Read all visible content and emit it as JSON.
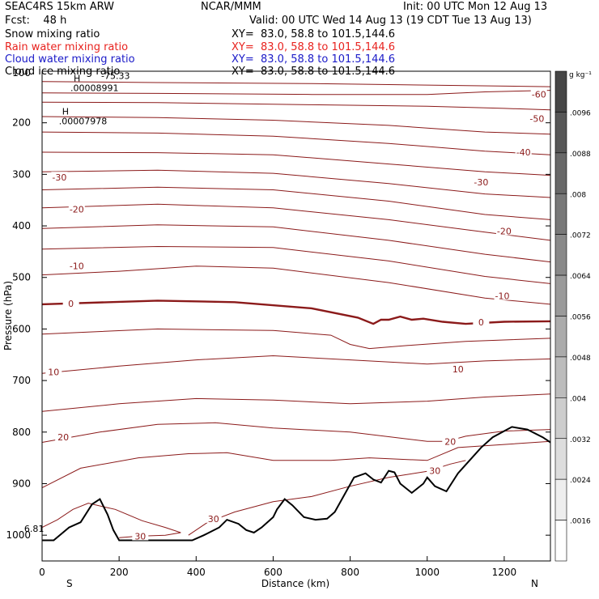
{
  "header": {
    "left_line1": "SEAC4RS 15km ARW",
    "center_line1": "NCAR/MMM",
    "right_line1": "Init: 00 UTC Mon 12 Aug 13",
    "left_line2": "Fcst:    48 h",
    "right_line2": "Valid: 00 UTC Wed 14 Aug 13 (19 CDT Tue 13 Aug 13)"
  },
  "fields": [
    {
      "label": "Snow mixing ratio",
      "xy": "XY=  83.0, 58.8 to 101.5,144.6",
      "color": "#000000"
    },
    {
      "label": "Rain water mixing ratio",
      "xy": "XY=  83.0, 58.8 to 101.5,144.6",
      "color": "#e8221e"
    },
    {
      "label": "Cloud water mixing ratio",
      "xy": "XY=  83.0, 58.8 to 101.5,144.6",
      "color": "#1a1ac8"
    },
    {
      "label": "Cloud ice mixing ratio",
      "xy": "XY=  83.0, 58.8 to 101.5,144.6",
      "color": "#000000"
    }
  ],
  "colors": {
    "isotherm": "#8b1a1a",
    "terrain": "#000000",
    "axis": "#000000"
  },
  "chart_data": {
    "type": "contour",
    "ylabel": "Pressure (hPa)",
    "xlabel": "Distance (km)",
    "xlim": [
      0,
      1320
    ],
    "ylim": [
      1050,
      100
    ],
    "x_ticks": [
      0,
      200,
      400,
      600,
      800,
      1000,
      1200
    ],
    "y_ticks": [
      200,
      300,
      400,
      500,
      600,
      700,
      800,
      900,
      1000
    ],
    "y_top_tick_label": "100",
    "x_end_labels": {
      "left": "S",
      "right": "N"
    },
    "colorbar": {
      "unit": "g kg⁻¹",
      "labels": [
        ".0096",
        ".0088",
        ".008",
        ".0072",
        ".0064",
        ".0056",
        ".0048",
        ".004",
        ".0032",
        ".0024",
        ".0016"
      ]
    },
    "annotations": [
      {
        "marker": "H",
        "value": ".00008991",
        "x": 145,
        "p": 135
      },
      {
        "marker": "H",
        "value": ".00007978",
        "x": 115,
        "p": 200
      },
      {
        "marker": "",
        "value": "-75.33",
        "x": 225,
        "p": 112
      },
      {
        "marker": "",
        "value": "6.81",
        "x": 25,
        "p": 990
      }
    ],
    "isotherm_labels": [
      {
        "text": "-60",
        "x": 1290,
        "p": 145
      },
      {
        "text": "-50",
        "x": 1285,
        "p": 192
      },
      {
        "text": "-40",
        "x": 1250,
        "p": 257
      },
      {
        "text": "-30",
        "x": 1140,
        "p": 315
      },
      {
        "text": "-30",
        "x": 45,
        "p": 306
      },
      {
        "text": "-20",
        "x": 1200,
        "p": 410
      },
      {
        "text": "-20",
        "x": 90,
        "p": 368
      },
      {
        "text": "-10",
        "x": 1195,
        "p": 536
      },
      {
        "text": "-10",
        "x": 90,
        "p": 478
      },
      {
        "text": "0",
        "x": 1140,
        "p": 587
      },
      {
        "text": "0",
        "x": 75,
        "p": 551
      },
      {
        "text": "10",
        "x": 1080,
        "p": 678
      },
      {
        "text": "10",
        "x": 30,
        "p": 683
      },
      {
        "text": "20",
        "x": 1060,
        "p": 818
      },
      {
        "text": "20",
        "x": 55,
        "p": 810
      },
      {
        "text": "30",
        "x": 1020,
        "p": 875
      },
      {
        "text": "30",
        "x": 445,
        "p": 968
      },
      {
        "text": "30",
        "x": 255,
        "p": 1002
      }
    ],
    "isotherms": [
      {
        "label": "-60",
        "points": [
          [
            0,
            120
          ],
          [
            300,
            122
          ],
          [
            700,
            124
          ],
          [
            1100,
            128
          ],
          [
            1320,
            130
          ]
        ]
      },
      {
        "label": "-55",
        "points": [
          [
            0,
            142
          ],
          [
            300,
            143
          ],
          [
            700,
            145
          ],
          [
            1000,
            145
          ],
          [
            1150,
            140
          ],
          [
            1320,
            137
          ]
        ]
      },
      {
        "label": "-50",
        "points": [
          [
            0,
            160
          ],
          [
            300,
            161
          ],
          [
            700,
            165
          ],
          [
            1000,
            168
          ],
          [
            1200,
            172
          ],
          [
            1320,
            175
          ]
        ]
      },
      {
        "label": "-45",
        "points": [
          [
            0,
            188
          ],
          [
            300,
            190
          ],
          [
            600,
            195
          ],
          [
            900,
            205
          ],
          [
            1150,
            218
          ],
          [
            1320,
            222
          ]
        ]
      },
      {
        "label": "-40",
        "points": [
          [
            0,
            218
          ],
          [
            300,
            220
          ],
          [
            600,
            226
          ],
          [
            900,
            240
          ],
          [
            1150,
            255
          ],
          [
            1320,
            262
          ]
        ]
      },
      {
        "label": "-35",
        "points": [
          [
            0,
            257
          ],
          [
            300,
            258
          ],
          [
            600,
            262
          ],
          [
            900,
            280
          ],
          [
            1150,
            295
          ],
          [
            1320,
            302
          ]
        ]
      },
      {
        "label": "-30",
        "points": [
          [
            0,
            295
          ],
          [
            300,
            292
          ],
          [
            600,
            298
          ],
          [
            900,
            318
          ],
          [
            1150,
            338
          ],
          [
            1320,
            345
          ]
        ]
      },
      {
        "label": "-25",
        "points": [
          [
            0,
            330
          ],
          [
            300,
            325
          ],
          [
            600,
            330
          ],
          [
            900,
            352
          ],
          [
            1150,
            378
          ],
          [
            1320,
            388
          ]
        ]
      },
      {
        "label": "-20",
        "points": [
          [
            0,
            365
          ],
          [
            300,
            358
          ],
          [
            600,
            365
          ],
          [
            900,
            388
          ],
          [
            1150,
            412
          ],
          [
            1320,
            428
          ]
        ]
      },
      {
        "label": "-15",
        "points": [
          [
            0,
            405
          ],
          [
            300,
            398
          ],
          [
            600,
            402
          ],
          [
            900,
            428
          ],
          [
            1150,
            455
          ],
          [
            1320,
            470
          ]
        ]
      },
      {
        "label": "-10",
        "points": [
          [
            0,
            445
          ],
          [
            300,
            440
          ],
          [
            600,
            442
          ],
          [
            900,
            468
          ],
          [
            1150,
            498
          ],
          [
            1320,
            512
          ]
        ]
      },
      {
        "label": "-5",
        "points": [
          [
            0,
            495
          ],
          [
            200,
            488
          ],
          [
            400,
            478
          ],
          [
            600,
            482
          ],
          [
            900,
            510
          ],
          [
            1150,
            540
          ],
          [
            1320,
            552
          ]
        ]
      },
      {
        "label": "0",
        "points": [
          [
            0,
            552
          ],
          [
            300,
            545
          ],
          [
            500,
            548
          ],
          [
            700,
            560
          ],
          [
            820,
            578
          ],
          [
            860,
            590
          ],
          [
            880,
            582
          ],
          [
            900,
            582
          ],
          [
            930,
            576
          ],
          [
            960,
            582
          ],
          [
            990,
            580
          ],
          [
            1040,
            586
          ],
          [
            1100,
            590
          ],
          [
            1200,
            586
          ],
          [
            1320,
            585
          ]
        ]
      },
      {
        "label": "5",
        "points": [
          [
            0,
            610
          ],
          [
            300,
            600
          ],
          [
            600,
            603
          ],
          [
            750,
            612
          ],
          [
            800,
            630
          ],
          [
            850,
            638
          ],
          [
            950,
            632
          ],
          [
            1100,
            624
          ],
          [
            1320,
            618
          ]
        ]
      },
      {
        "label": "10",
        "points": [
          [
            0,
            686
          ],
          [
            200,
            672
          ],
          [
            400,
            660
          ],
          [
            600,
            652
          ],
          [
            800,
            660
          ],
          [
            1000,
            668
          ],
          [
            1150,
            662
          ],
          [
            1320,
            658
          ]
        ]
      },
      {
        "label": "15",
        "points": [
          [
            0,
            760
          ],
          [
            200,
            745
          ],
          [
            400,
            735
          ],
          [
            600,
            738
          ],
          [
            800,
            745
          ],
          [
            1000,
            740
          ],
          [
            1150,
            732
          ],
          [
            1320,
            726
          ]
        ]
      },
      {
        "label": "20",
        "points": [
          [
            0,
            820
          ],
          [
            150,
            800
          ],
          [
            300,
            785
          ],
          [
            450,
            782
          ],
          [
            600,
            792
          ],
          [
            800,
            800
          ],
          [
            1000,
            818
          ],
          [
            1050,
            818
          ],
          [
            1100,
            808
          ],
          [
            1200,
            798
          ],
          [
            1320,
            795
          ]
        ]
      },
      {
        "label": "25",
        "points": [
          [
            0,
            908
          ],
          [
            100,
            870
          ],
          [
            250,
            850
          ],
          [
            380,
            842
          ],
          [
            480,
            840
          ],
          [
            600,
            855
          ],
          [
            750,
            855
          ],
          [
            850,
            850
          ],
          [
            1000,
            855
          ],
          [
            1080,
            830
          ],
          [
            1320,
            818
          ]
        ]
      },
      {
        "label": "30a",
        "points": [
          [
            0,
            985
          ],
          [
            40,
            970
          ],
          [
            80,
            950
          ],
          [
            120,
            938
          ],
          [
            160,
            945
          ],
          [
            190,
            950
          ],
          [
            260,
            972
          ],
          [
            320,
            985
          ],
          [
            360,
            995
          ],
          [
            320,
            1000
          ],
          [
            250,
            1002
          ],
          [
            200,
            1005
          ]
        ]
      },
      {
        "label": "30b",
        "points": [
          [
            380,
            1000
          ],
          [
            430,
            975
          ],
          [
            500,
            955
          ],
          [
            600,
            935
          ],
          [
            700,
            925
          ],
          [
            800,
            905
          ],
          [
            900,
            888
          ],
          [
            1000,
            876
          ],
          [
            1060,
            862
          ],
          [
            1100,
            855
          ]
        ]
      }
    ],
    "terrain": [
      [
        0,
        1010
      ],
      [
        30,
        1010
      ],
      [
        70,
        985
      ],
      [
        100,
        975
      ],
      [
        130,
        940
      ],
      [
        150,
        930
      ],
      [
        170,
        960
      ],
      [
        185,
        990
      ],
      [
        200,
        1010
      ],
      [
        390,
        1010
      ],
      [
        420,
        1000
      ],
      [
        460,
        985
      ],
      [
        480,
        970
      ],
      [
        510,
        978
      ],
      [
        530,
        990
      ],
      [
        550,
        995
      ],
      [
        570,
        985
      ],
      [
        600,
        965
      ],
      [
        610,
        950
      ],
      [
        630,
        930
      ],
      [
        650,
        942
      ],
      [
        680,
        965
      ],
      [
        710,
        970
      ],
      [
        740,
        968
      ],
      [
        760,
        955
      ],
      [
        790,
        915
      ],
      [
        810,
        888
      ],
      [
        840,
        880
      ],
      [
        860,
        892
      ],
      [
        880,
        898
      ],
      [
        900,
        875
      ],
      [
        915,
        878
      ],
      [
        930,
        900
      ],
      [
        960,
        918
      ],
      [
        990,
        900
      ],
      [
        1000,
        888
      ],
      [
        1020,
        905
      ],
      [
        1050,
        915
      ],
      [
        1080,
        880
      ],
      [
        1110,
        855
      ],
      [
        1140,
        830
      ],
      [
        1170,
        810
      ],
      [
        1220,
        790
      ],
      [
        1260,
        795
      ],
      [
        1300,
        810
      ],
      [
        1320,
        820
      ],
      [
        1340,
        830
      ],
      [
        1400,
        830
      ],
      [
        1440,
        832
      ],
      [
        1460,
        820
      ],
      [
        1490,
        805
      ],
      [
        1520,
        808
      ],
      [
        1540,
        826
      ]
    ]
  }
}
